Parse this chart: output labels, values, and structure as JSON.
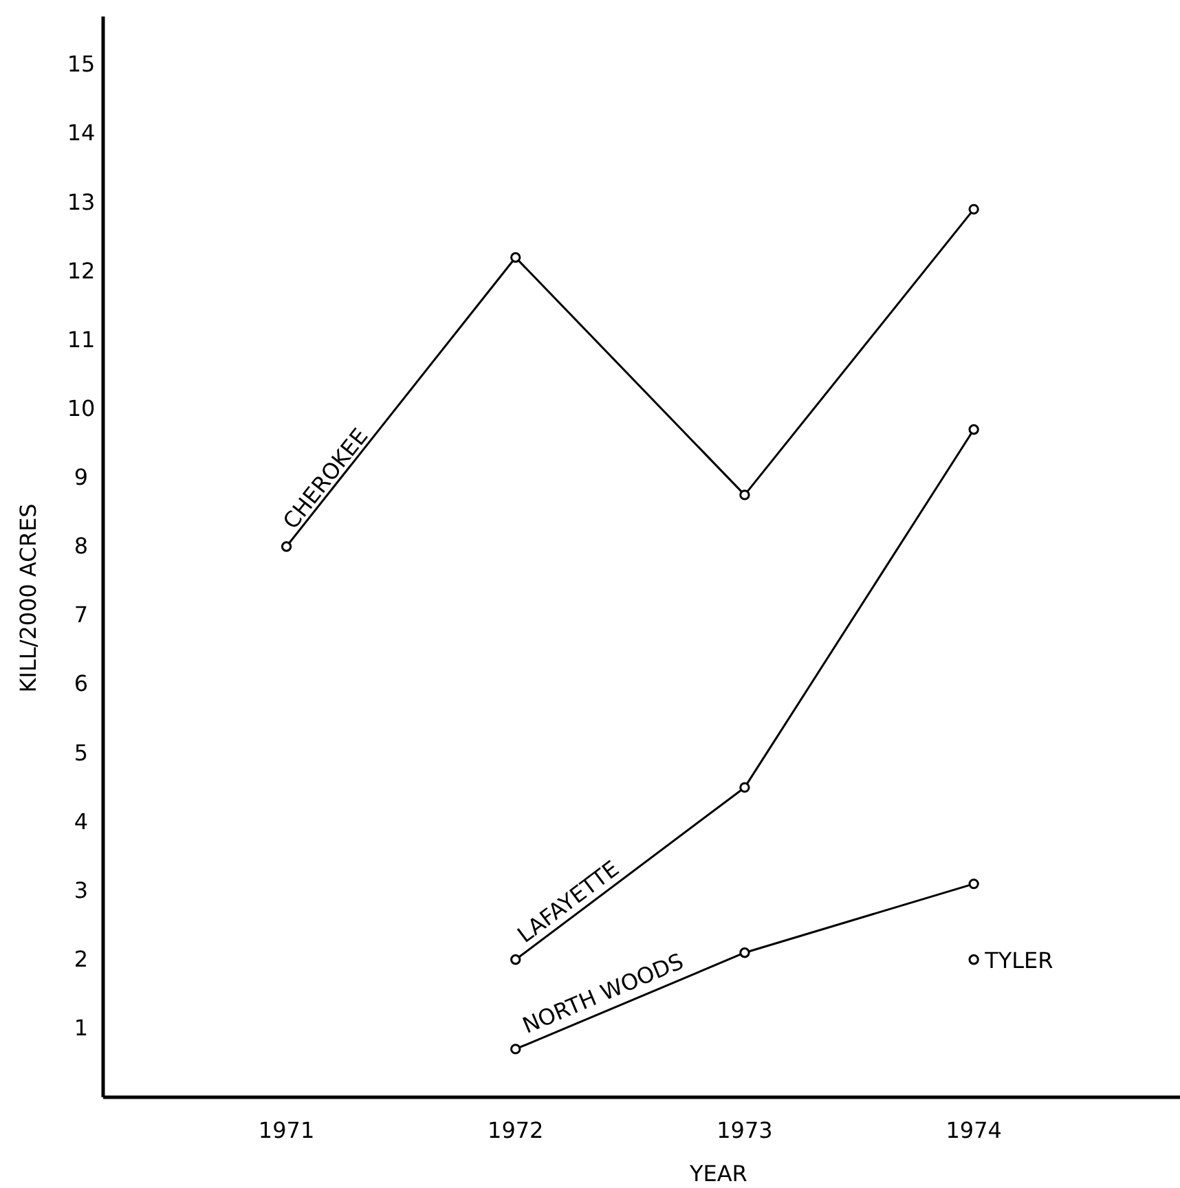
{
  "chart_data": {
    "type": "line",
    "xlabel": "YEAR",
    "ylabel": "KILL/2000 ACRES",
    "xlim": [
      1970.2,
      1974.9
    ],
    "ylim": [
      0,
      15.7
    ],
    "xticks": [
      1971,
      1972,
      1973,
      1974
    ],
    "yticks": [
      1,
      2,
      3,
      4,
      5,
      6,
      7,
      8,
      9,
      10,
      11,
      12,
      13,
      14,
      15
    ],
    "grid": false,
    "legend": false,
    "marker": "circle",
    "line_style": "solid",
    "series": [
      {
        "name": "CHEROKEE",
        "color": "#000000",
        "x": [
          1971,
          1972,
          1973,
          1974
        ],
        "values": [
          8.0,
          12.2,
          8.75,
          12.9
        ]
      },
      {
        "name": "LAFAYETTE",
        "color": "#000000",
        "x": [
          1972,
          1973,
          1974
        ],
        "values": [
          2.0,
          4.5,
          9.7
        ]
      },
      {
        "name": "NORTH WOODS",
        "color": "#000000",
        "x": [
          1972,
          1973,
          1974
        ],
        "values": [
          0.7,
          2.1,
          3.1
        ]
      },
      {
        "name": "TYLER",
        "type": "scatter",
        "color": "#000000",
        "x": [
          1974
        ],
        "values": [
          2.0
        ]
      }
    ]
  }
}
